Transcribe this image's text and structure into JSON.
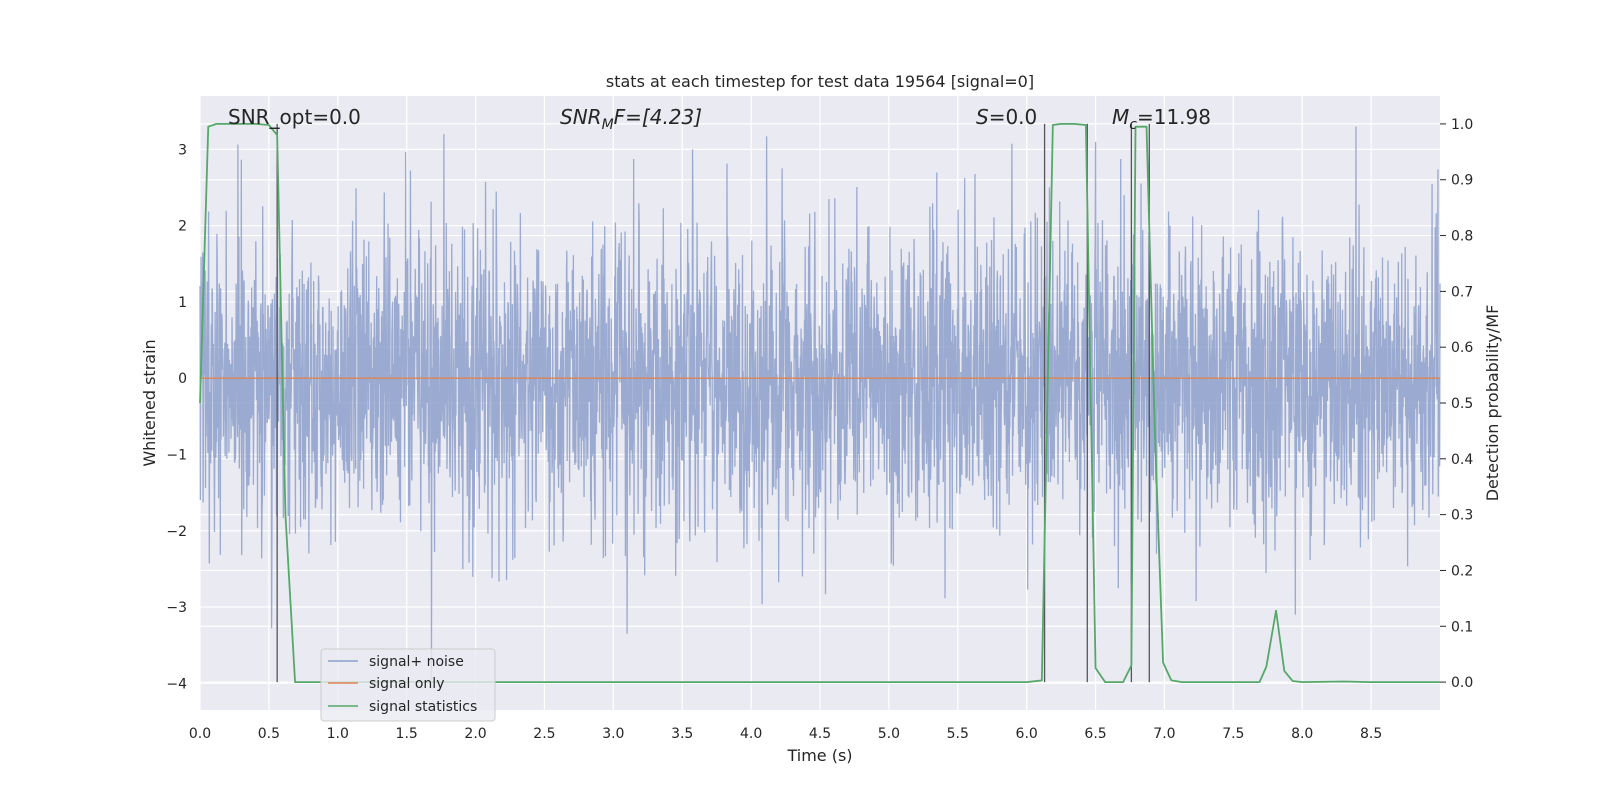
{
  "chart_data": {
    "type": "line",
    "title": "stats at each timestep for test data 19564 [signal=0]",
    "xlabel": "Time (s)",
    "ylabel": "Whitened strain",
    "y2label": "Detection probability/MF",
    "xlim": [
      0.0,
      9.0
    ],
    "ylim": [
      -4.35,
      3.7
    ],
    "y2lim": [
      -0.05,
      1.05
    ],
    "x_ticks": [
      0.0,
      0.5,
      1.0,
      1.5,
      2.0,
      2.5,
      3.0,
      3.5,
      4.0,
      4.5,
      5.0,
      5.5,
      6.0,
      6.5,
      7.0,
      7.5,
      8.0,
      8.5
    ],
    "x_tick_labels": [
      "0.0",
      "0.5",
      "1.0",
      "1.5",
      "2.0",
      "2.5",
      "3.0",
      "3.5",
      "4.0",
      "4.5",
      "5.0",
      "5.5",
      "6.0",
      "6.5",
      "7.0",
      "7.5",
      "8.0",
      "8.5"
    ],
    "y_ticks": [
      3,
      2,
      1,
      0,
      -1,
      -2,
      -3,
      -4
    ],
    "y_tick_labels": [
      "3",
      "2",
      "1",
      "0",
      "−1",
      "−2",
      "−3",
      "−4"
    ],
    "y2_ticks": [
      1.0,
      0.9,
      0.8,
      0.7,
      0.6,
      0.5,
      0.4,
      0.3,
      0.2,
      0.1,
      0.0
    ],
    "y2_tick_labels": [
      "1.0",
      "0.9",
      "0.8",
      "0.7",
      "0.6",
      "0.5",
      "0.4",
      "0.3",
      "0.2",
      "0.1",
      "0.0"
    ],
    "grid": true,
    "legend": "lower-left",
    "annotations": {
      "snr_opt": "SNR_opt=0.0",
      "snr_mf_main": "SNR",
      "snr_mf_sub": "M",
      "snr_mf_rest": "F=[4.23]",
      "s_main": "S",
      "s_rest": "=0.0",
      "mc_main": "M",
      "mc_sub": "c",
      "mc_rest": "=11.98"
    },
    "series": [
      {
        "name": "signal+ noise",
        "color": "#8c9fca",
        "axis": "left",
        "noise_sample_rate_hz": 400,
        "envelope": {
          "typical_abs": 1.0,
          "peak_max": 3.3,
          "peak_min": -3.95
        },
        "notable_peaks": [
          {
            "x": 1.77,
            "y": 3.2
          },
          {
            "x": 6.5,
            "y": 3.1
          },
          {
            "x": 8.39,
            "y": 3.3
          },
          {
            "x": 1.68,
            "y": -3.95
          },
          {
            "x": 3.1,
            "y": -3.35
          },
          {
            "x": 0.52,
            "y": -3.28
          },
          {
            "x": 7.95,
            "y": -3.1
          }
        ]
      },
      {
        "name": "signal only",
        "color": "#dd8452",
        "axis": "left",
        "x": [
          0.0,
          9.0
        ],
        "y": [
          0.0,
          0.0
        ]
      },
      {
        "name": "signal statistics",
        "color": "#55a868",
        "axis": "right",
        "x": [
          0.0,
          0.06,
          0.12,
          0.2,
          0.3,
          0.4,
          0.5,
          0.56,
          0.62,
          0.69,
          0.8,
          1.5,
          2.5,
          3.5,
          4.5,
          5.5,
          6.0,
          6.11,
          6.19,
          6.25,
          6.34,
          6.43,
          6.5,
          6.57,
          6.63,
          6.7,
          6.76,
          6.79,
          6.83,
          6.87,
          6.93,
          6.99,
          7.05,
          7.13,
          7.3,
          7.5,
          7.69,
          7.74,
          7.81,
          7.87,
          7.93,
          8.0,
          8.3,
          8.5,
          8.7,
          9.0
        ],
        "y": [
          0.5,
          0.995,
          1.0,
          1.0,
          1.0,
          1.0,
          0.998,
          0.98,
          0.3,
          0.0,
          0.0,
          0.0,
          0.0,
          0.0,
          0.0,
          0.0,
          0.0,
          0.003,
          0.998,
          1.0,
          1.0,
          0.998,
          0.025,
          0.0,
          0.0,
          0.0,
          0.03,
          0.995,
          0.995,
          0.995,
          0.45,
          0.035,
          0.003,
          0.0,
          0.0,
          0.0,
          0.0,
          0.028,
          0.128,
          0.02,
          0.002,
          0.0,
          0.001,
          0.0,
          0.0,
          0.0
        ]
      }
    ],
    "vertical_markers": [
      0.56,
      6.13,
      6.44,
      6.76,
      6.89
    ]
  }
}
